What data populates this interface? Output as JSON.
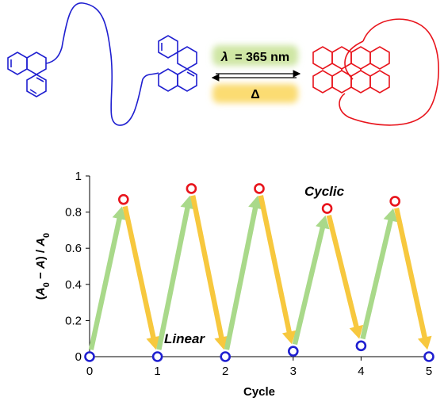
{
  "scheme": {
    "forward_label_symbol": "λ",
    "forward_label_value": "= 365 nm",
    "reverse_label": "Δ",
    "colors": {
      "linear": "#1f1fd0",
      "cyclic": "#e8141c",
      "light_band": "#cfe6a4",
      "heat_band": "#fbdc72"
    }
  },
  "chart_data": {
    "type": "scatter",
    "xlabel": "Cycle",
    "ylabel_parts": [
      "(",
      "A",
      "0",
      " − ",
      "A",
      ") / ",
      "A",
      "0"
    ],
    "xlim": [
      0,
      5
    ],
    "ylim": [
      0,
      1
    ],
    "xticks": [
      "0",
      "1",
      "2",
      "3",
      "4",
      "5"
    ],
    "yticks": [
      "0",
      "0.2",
      "0.4",
      "0.6",
      "0.8",
      "1"
    ],
    "grid": false,
    "annotations": [
      {
        "text": "Cyclic",
        "color": "#e8141c"
      },
      {
        "text": "Linear",
        "color": "#1f1fd0"
      }
    ],
    "series": [
      {
        "marker_color": "#1f1fd0",
        "x": [
          0,
          1,
          2,
          3,
          4,
          5
        ],
        "y": [
          0.0,
          0.0,
          0.0,
          0.03,
          0.06,
          0.0
        ]
      },
      {
        "marker_color": "#e8141c",
        "x": [
          0.5,
          1.5,
          2.5,
          3.5,
          4.5
        ],
        "y": [
          0.87,
          0.93,
          0.93,
          0.82,
          0.86
        ]
      }
    ],
    "arrow_colors": {
      "irradiation": "#a9d98a",
      "heating": "#f7c83e"
    }
  }
}
